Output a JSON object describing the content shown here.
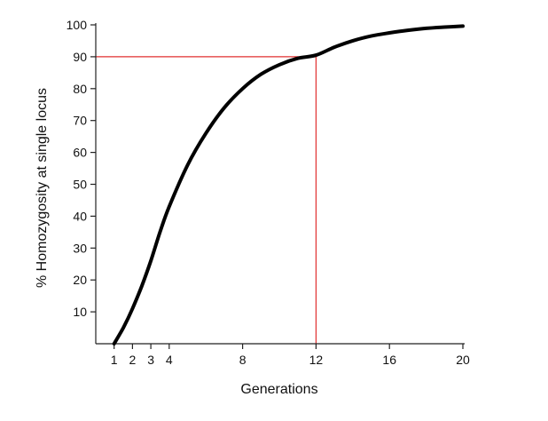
{
  "chart_data": {
    "type": "line",
    "title": "",
    "xlabel": "Generations",
    "ylabel": "% Homozygosity at single locus",
    "xlim": [
      0,
      20
    ],
    "ylim": [
      0,
      100
    ],
    "xticks": [
      1,
      2,
      3,
      4,
      8,
      12,
      16,
      20
    ],
    "yticks": [
      10,
      20,
      30,
      40,
      50,
      60,
      70,
      80,
      90,
      100
    ],
    "grid": false,
    "series": [
      {
        "color": "#000000",
        "x": [
          1,
          1.5,
          2,
          2.5,
          3,
          3.5,
          4,
          5,
          6,
          7,
          8,
          9,
          10,
          11,
          12,
          13,
          14,
          15,
          16,
          17,
          18,
          19,
          20
        ],
        "y": [
          0,
          5,
          11,
          18,
          26,
          35,
          43,
          56,
          66,
          74,
          80,
          84.5,
          87.5,
          89.5,
          90.5,
          93,
          95,
          96.5,
          97.5,
          98.3,
          98.9,
          99.3,
          99.6
        ]
      }
    ],
    "reference_lines": {
      "color": "#e03030",
      "x": 12,
      "y": 90
    }
  }
}
